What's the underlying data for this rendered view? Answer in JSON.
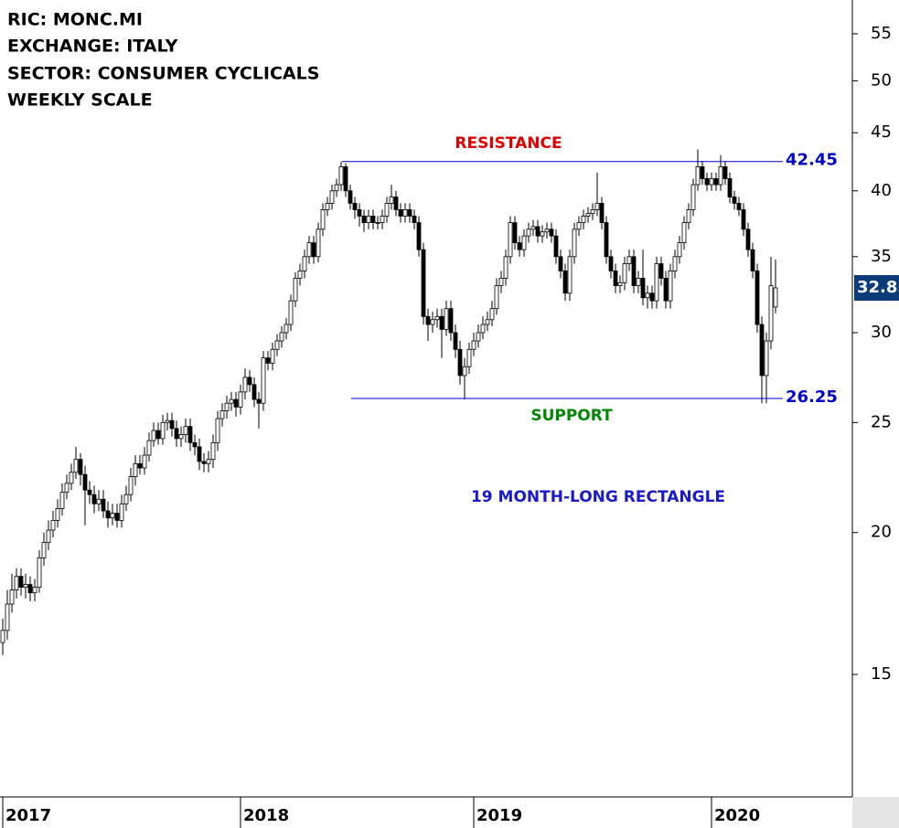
{
  "chart_data": {
    "type": "candlestick",
    "title_lines": [
      "RIC: MONC.MI",
      "EXCHANGE: ITALY",
      "SECTOR: CONSUMER CYCLICALS",
      "WEEKLY SCALE"
    ],
    "categories": [
      "2017",
      null,
      null,
      null,
      null,
      null,
      null,
      null,
      null,
      null,
      null,
      null,
      null,
      null,
      null,
      null,
      null,
      null,
      null,
      null,
      null,
      null,
      null,
      null,
      null,
      null,
      null,
      null,
      null,
      null,
      null,
      null,
      null,
      null,
      null,
      null,
      null,
      null,
      null,
      null,
      null,
      null,
      null,
      null,
      null,
      null,
      null,
      null,
      null,
      null,
      null,
      null,
      "2018",
      null,
      null,
      null,
      null,
      null,
      null,
      null,
      null,
      null,
      null,
      null,
      null,
      null,
      null,
      null,
      null,
      null,
      null,
      null,
      null,
      null,
      null,
      null,
      null,
      null,
      null,
      null,
      null,
      null,
      null,
      null,
      null,
      null,
      null,
      null,
      null,
      null,
      null,
      null,
      null,
      null,
      null,
      null,
      null,
      null,
      null,
      null,
      null,
      null,
      null,
      "2019",
      null,
      null,
      null,
      null,
      null,
      null,
      null,
      null,
      null,
      null,
      null,
      null,
      null,
      null,
      null,
      null,
      null,
      null,
      null,
      null,
      null,
      null,
      null,
      null,
      null,
      null,
      null,
      null,
      null,
      null,
      null,
      null,
      null,
      null,
      null,
      null,
      null,
      null,
      null,
      null,
      null,
      null,
      null,
      null,
      null,
      null,
      null,
      null,
      null,
      null,
      null,
      "2020",
      null,
      null,
      null,
      null,
      null,
      null,
      null,
      null,
      null,
      null,
      null,
      null,
      null,
      null
    ],
    "open": [
      16.0,
      16.4,
      17.3,
      17.8,
      18.3,
      17.9,
      18.0,
      17.7,
      17.9,
      19.0,
      19.6,
      20.1,
      20.5,
      21.0,
      21.7,
      22.1,
      22.6,
      23.2,
      22.5,
      21.8,
      21.6,
      21.2,
      21.4,
      20.9,
      20.6,
      20.8,
      20.5,
      21.2,
      21.6,
      22.4,
      23.0,
      22.8,
      23.4,
      24.1,
      24.6,
      24.2,
      25.0,
      25.1,
      24.7,
      24.2,
      24.4,
      24.8,
      24.0,
      23.8,
      23.1,
      23.0,
      23.2,
      24.0,
      25.2,
      25.6,
      26.0,
      26.2,
      25.8,
      26.6,
      27.4,
      27.0,
      26.2,
      26.0,
      28.5,
      28.2,
      29.0,
      29.5,
      30.0,
      30.5,
      32.0,
      33.5,
      34.0,
      35.0,
      36.0,
      35.0,
      37.0,
      38.5,
      39.0,
      40.0,
      40.5,
      42.0,
      40.0,
      39.0,
      38.5,
      38.0,
      37.5,
      38.0,
      37.5,
      37.5,
      38.0,
      39.0,
      39.5,
      38.5,
      38.0,
      38.5,
      38.0,
      37.5,
      35.5,
      31.0,
      30.5,
      30.8,
      31.0,
      30.2,
      31.5,
      30.0,
      29.0,
      27.5,
      28.0,
      29.0,
      29.5,
      30.0,
      30.5,
      30.8,
      31.5,
      33.0,
      33.5,
      35.0,
      37.5,
      36.0,
      35.5,
      36.5,
      37.0,
      37.2,
      36.5,
      36.8,
      37.0,
      36.5,
      35.0,
      34.0,
      32.5,
      35.0,
      37.0,
      37.5,
      38.0,
      38.2,
      38.5,
      39.0,
      37.5,
      35.0,
      34.0,
      33.0,
      33.2,
      34.5,
      35.0,
      33.0,
      33.5,
      32.2,
      32.5,
      32.0,
      34.5,
      33.5,
      32.0,
      34.0,
      35.0,
      36.0,
      37.5,
      38.5,
      40.5,
      42.0,
      41.0,
      40.5,
      41.0,
      40.5,
      42.0,
      41.0,
      39.5,
      39.0,
      38.5,
      37.0,
      35.5,
      34.0,
      30.5,
      27.5,
      29.5,
      31.6
    ],
    "high": [
      16.8,
      17.8,
      18.4,
      18.6,
      18.6,
      18.4,
      18.3,
      18.2,
      19.3,
      20.0,
      20.5,
      20.9,
      21.4,
      22.1,
      22.5,
      23.0,
      23.8,
      23.5,
      22.9,
      22.2,
      22.0,
      21.8,
      21.8,
      21.3,
      21.2,
      21.2,
      21.6,
      22.0,
      22.8,
      23.4,
      23.4,
      23.8,
      24.5,
      25.0,
      25.0,
      25.4,
      25.5,
      25.5,
      25.1,
      24.8,
      25.2,
      25.2,
      24.4,
      24.2,
      23.5,
      23.6,
      24.4,
      25.6,
      26.0,
      26.4,
      26.6,
      26.6,
      27.0,
      27.9,
      27.8,
      27.4,
      26.6,
      28.9,
      28.9,
      29.4,
      29.9,
      30.4,
      30.9,
      32.4,
      33.9,
      34.5,
      35.5,
      36.5,
      36.5,
      37.5,
      39.0,
      39.5,
      40.5,
      41.0,
      42.45,
      42.3,
      40.5,
      39.5,
      39.0,
      38.5,
      38.5,
      38.5,
      38.0,
      38.5,
      39.5,
      40.5,
      40.0,
      39.0,
      39.0,
      39.0,
      38.5,
      38.0,
      36.0,
      31.5,
      31.3,
      31.5,
      31.5,
      32.0,
      32.0,
      30.5,
      29.5,
      28.5,
      29.4,
      30.0,
      30.5,
      31.0,
      31.3,
      32.0,
      33.5,
      34.0,
      35.5,
      38.0,
      38.0,
      36.5,
      37.0,
      37.5,
      37.7,
      37.7,
      37.3,
      37.5,
      37.5,
      37.0,
      35.5,
      34.5,
      35.5,
      37.5,
      38.0,
      38.5,
      38.7,
      39.0,
      41.5,
      39.5,
      38.0,
      35.5,
      34.5,
      33.7,
      35.0,
      35.5,
      35.5,
      34.0,
      35.5,
      33.0,
      33.0,
      35.0,
      35.0,
      34.0,
      34.5,
      35.5,
      36.5,
      38.0,
      39.0,
      41.0,
      43.5,
      42.5,
      41.5,
      41.5,
      41.5,
      43.0,
      42.5,
      41.5,
      40.0,
      39.5,
      39.0,
      37.5,
      36.0,
      34.5,
      31.0,
      30.0,
      35.0,
      34.8
    ],
    "low": [
      15.6,
      16.1,
      17.0,
      17.5,
      17.6,
      17.5,
      17.4,
      17.4,
      17.7,
      18.7,
      19.3,
      19.8,
      20.2,
      20.7,
      21.4,
      21.8,
      22.3,
      22.0,
      20.3,
      21.2,
      20.8,
      20.9,
      20.6,
      20.2,
      20.3,
      20.2,
      20.2,
      20.9,
      21.3,
      22.0,
      22.5,
      22.5,
      23.1,
      23.8,
      23.9,
      23.9,
      24.6,
      24.3,
      23.8,
      23.8,
      24.0,
      23.6,
      23.4,
      22.7,
      22.6,
      22.6,
      22.8,
      23.6,
      24.8,
      25.2,
      25.6,
      25.3,
      25.4,
      26.2,
      26.6,
      25.8,
      24.7,
      25.6,
      27.8,
      27.8,
      28.6,
      29.1,
      29.6,
      30.1,
      31.6,
      33.0,
      33.5,
      34.5,
      34.5,
      34.6,
      36.5,
      38.0,
      38.5,
      39.5,
      40.0,
      39.5,
      38.5,
      37.8,
      37.2,
      36.8,
      37.0,
      37.0,
      37.0,
      37.0,
      37.5,
      38.5,
      38.0,
      37.5,
      37.5,
      37.5,
      37.0,
      35.0,
      30.5,
      29.5,
      30.0,
      30.3,
      28.5,
      29.8,
      29.5,
      28.5,
      27.0,
      26.2,
      27.6,
      28.6,
      29.1,
      29.6,
      30.1,
      30.4,
      31.1,
      32.5,
      33.0,
      34.5,
      35.5,
      35.0,
      35.0,
      36.0,
      36.5,
      36.0,
      36.0,
      36.3,
      36.0,
      34.5,
      33.5,
      32.0,
      32.0,
      34.5,
      36.5,
      37.0,
      37.5,
      37.7,
      38.0,
      37.0,
      34.5,
      33.5,
      32.5,
      32.5,
      32.7,
      34.0,
      32.5,
      32.5,
      31.7,
      31.5,
      31.5,
      31.5,
      33.0,
      31.5,
      31.5,
      33.5,
      34.5,
      35.5,
      37.0,
      38.0,
      40.0,
      40.5,
      40.0,
      40.0,
      40.0,
      40.0,
      40.5,
      39.0,
      38.5,
      38.0,
      36.5,
      35.0,
      33.5,
      30.0,
      26.0,
      26.0,
      29.0,
      31.2
    ],
    "close": [
      16.4,
      17.3,
      17.8,
      18.3,
      17.9,
      18.0,
      17.7,
      17.9,
      19.0,
      19.6,
      20.1,
      20.5,
      21.0,
      21.7,
      22.1,
      22.6,
      23.2,
      22.5,
      21.8,
      21.6,
      21.2,
      21.4,
      20.9,
      20.6,
      20.8,
      20.5,
      21.2,
      21.6,
      22.4,
      23.0,
      22.8,
      23.4,
      24.1,
      24.6,
      24.2,
      25.0,
      25.1,
      24.7,
      24.2,
      24.4,
      24.8,
      24.0,
      23.8,
      23.1,
      23.0,
      23.2,
      24.0,
      25.2,
      25.6,
      26.0,
      26.2,
      25.8,
      26.6,
      27.4,
      27.0,
      26.2,
      26.0,
      28.5,
      28.2,
      29.0,
      29.5,
      30.0,
      30.5,
      32.0,
      33.5,
      34.0,
      35.0,
      36.0,
      35.0,
      37.0,
      38.5,
      39.0,
      40.0,
      40.5,
      42.0,
      40.0,
      39.0,
      38.5,
      38.0,
      37.5,
      38.0,
      37.5,
      37.5,
      38.0,
      39.0,
      39.5,
      38.5,
      38.0,
      38.5,
      38.0,
      37.5,
      35.5,
      31.0,
      30.5,
      30.8,
      31.0,
      30.2,
      31.5,
      30.0,
      29.0,
      27.5,
      28.0,
      29.0,
      29.5,
      30.0,
      30.5,
      30.8,
      31.5,
      33.0,
      33.5,
      35.0,
      37.5,
      36.0,
      35.5,
      36.5,
      37.0,
      37.2,
      36.5,
      36.8,
      37.0,
      36.5,
      35.0,
      34.0,
      32.5,
      35.0,
      37.0,
      37.5,
      38.0,
      38.2,
      38.5,
      39.0,
      37.5,
      35.0,
      34.0,
      33.0,
      33.2,
      34.5,
      35.0,
      33.0,
      33.5,
      32.2,
      32.5,
      32.0,
      34.5,
      33.5,
      32.0,
      34.0,
      35.0,
      36.0,
      37.5,
      38.5,
      40.5,
      42.0,
      41.0,
      40.5,
      41.0,
      40.5,
      42.0,
      41.0,
      39.5,
      39.0,
      38.5,
      37.0,
      35.5,
      34.0,
      30.5,
      27.5,
      29.5,
      33.0,
      32.85
    ],
    "ylim": [
      11.7,
      58.9
    ],
    "yticks": [
      15,
      20,
      25,
      30,
      35,
      40,
      45,
      50,
      55
    ],
    "log_scale": true,
    "levels": [
      {
        "value": 42.45,
        "color": "#0000cc"
      },
      {
        "value": 26.25,
        "color": "#0000cc"
      }
    ],
    "annotations": [
      {
        "text": "RESISTANCE",
        "color": "#e00000"
      },
      {
        "text": "SUPPORT",
        "color": "#008800"
      },
      {
        "text": "19 MONTH-LONG RECTANGLE",
        "color": "#1a1acc"
      }
    ],
    "last_price_color": "#0b3b78"
  }
}
